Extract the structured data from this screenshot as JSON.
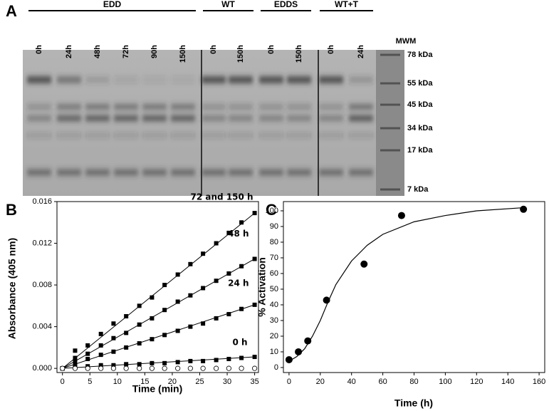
{
  "gel": {
    "panel": "A",
    "groups": [
      {
        "name": "EDD",
        "lanes": [
          "0h",
          "24h",
          "48h",
          "72h",
          "90h",
          "150h"
        ]
      },
      {
        "name": "WT",
        "lanes": [
          "0h",
          "150h"
        ]
      },
      {
        "name": "EDDS",
        "lanes": [
          "0h",
          "150h"
        ]
      },
      {
        "name": "WT+T",
        "lanes": [
          "0h",
          "24h"
        ]
      }
    ],
    "marker_title": "MWM",
    "markers": [
      "78 kDa",
      "55 kDa",
      "45 kDa",
      "34 kDa",
      "17 kDa",
      "7 kDa"
    ]
  },
  "chart_data": [
    {
      "type": "scatter",
      "panel": "B",
      "xlabel": "Time (min)",
      "ylabel": "Absorbance (405 nm)",
      "x": [
        0,
        2.3,
        4.6,
        7,
        9.3,
        11.6,
        14,
        16.3,
        18.6,
        21,
        23.3,
        25.6,
        28,
        30.3,
        32.6,
        35
      ],
      "series": [
        {
          "name": "72 and 150 h",
          "color": "#000000",
          "marker": "square",
          "fit": true,
          "values": [
            0,
            0.0017,
            0.0022,
            0.0033,
            0.0043,
            0.005,
            0.006,
            0.0068,
            0.008,
            0.009,
            0.01,
            0.011,
            0.012,
            0.013,
            0.014,
            0.0149
          ]
        },
        {
          "name": "48 h",
          "color": "#000000",
          "marker": "square",
          "fit": true,
          "values": [
            0,
            0.001,
            0.0014,
            0.0022,
            0.0029,
            0.0034,
            0.0042,
            0.0048,
            0.0056,
            0.0064,
            0.007,
            0.0077,
            0.0084,
            0.0091,
            0.0098,
            0.0105
          ]
        },
        {
          "name": "24 h",
          "color": "#000000",
          "marker": "square",
          "fit": true,
          "values": [
            0,
            0.0006,
            0.0009,
            0.0013,
            0.0016,
            0.002,
            0.0024,
            0.0028,
            0.0032,
            0.0036,
            0.004,
            0.0043,
            0.0048,
            0.0052,
            0.0057,
            0.0061
          ]
        },
        {
          "name": "0 h",
          "color": "#000000",
          "marker": "square",
          "fit": true,
          "values": [
            0,
            0.0002,
            0.0002,
            0.0003,
            0.0003,
            0.0004,
            0.0004,
            0.0005,
            0.0005,
            0.0006,
            0.0007,
            0.0007,
            0.0008,
            0.0009,
            0.001,
            0.0011
          ]
        },
        {
          "color": "#000000",
          "marker": "circle-open",
          "values": [
            0,
            0,
            0,
            0,
            0,
            0,
            0,
            0,
            0,
            0,
            0,
            0,
            0,
            0,
            0,
            0
          ]
        }
      ],
      "xlim": [
        -1,
        35.7
      ],
      "ylim": [
        -0.0004,
        0.016
      ],
      "xticks": [
        0,
        5,
        10,
        15,
        20,
        25,
        30,
        35
      ],
      "yticks": [
        {
          "value": 0,
          "label": "0.000"
        },
        {
          "value": 0.004,
          "label": "0.004"
        },
        {
          "value": 0.008,
          "label": "0.008"
        },
        {
          "value": 0.012,
          "label": "0.012"
        },
        {
          "value": 0.016,
          "label": "0.016"
        }
      ]
    },
    {
      "type": "scatter",
      "panel": "C",
      "xlabel": "Time (h)",
      "ylabel": "% Activation",
      "x": [
        0,
        6,
        12,
        24,
        48,
        72,
        150
      ],
      "series": [
        {
          "color": "#000000",
          "marker": "circle",
          "values": [
            5,
            10,
            17,
            43,
            66,
            97,
            101
          ]
        }
      ],
      "curve": {
        "x": [
          0,
          5,
          10,
          15,
          20,
          25,
          30,
          40,
          50,
          60,
          80,
          100,
          120,
          150
        ],
        "values": [
          4,
          7,
          12,
          20,
          30,
          42,
          53,
          68,
          78,
          85,
          93,
          97,
          100,
          102
        ]
      },
      "xlim": [
        -3.6,
        163.6
      ],
      "ylim": [
        -3.2,
        105.9
      ],
      "xticks": [
        0,
        20,
        40,
        60,
        80,
        100,
        120,
        140,
        160
      ],
      "yticks": [
        0,
        10,
        20,
        30,
        40,
        50,
        60,
        70,
        80,
        90,
        100
      ]
    }
  ]
}
